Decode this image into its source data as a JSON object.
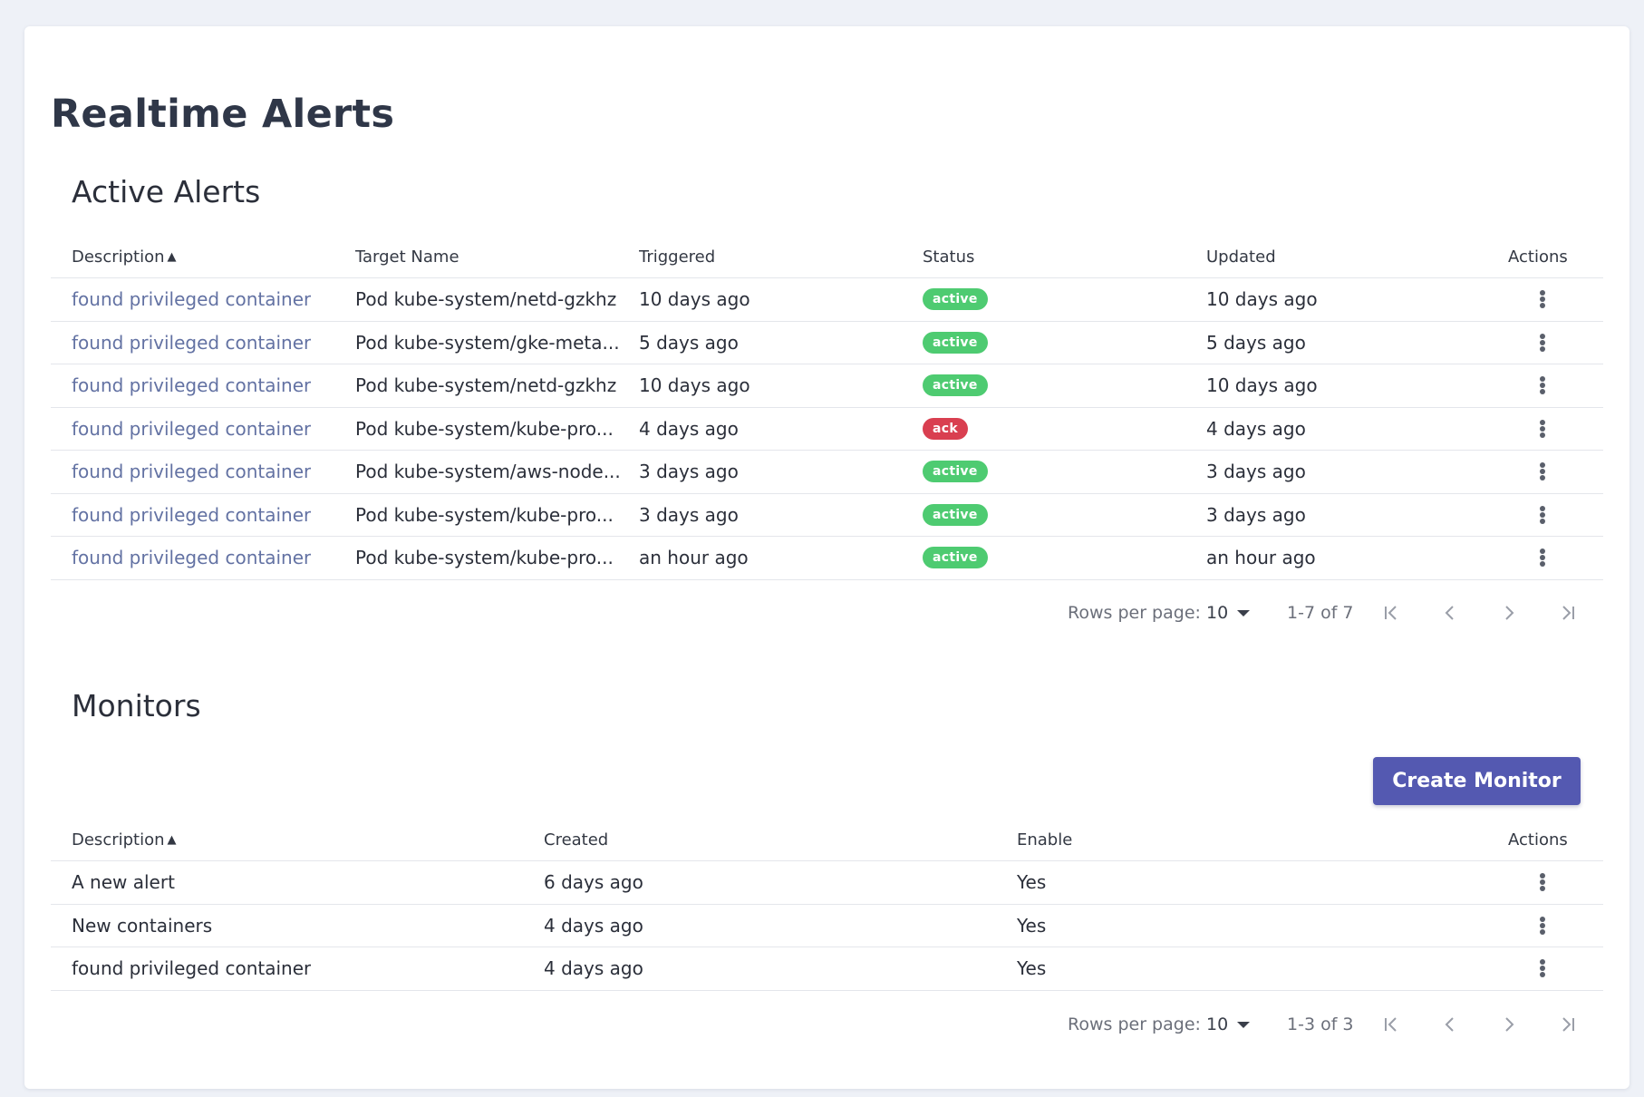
{
  "page": {
    "title": "Realtime Alerts"
  },
  "colors": {
    "accent": "#5459b1",
    "status_active": "#4ecb71",
    "status_ack": "#d93f50",
    "link": "#6372a3"
  },
  "active_alerts": {
    "title": "Active Alerts",
    "columns": {
      "description": "Description",
      "target_name": "Target Name",
      "triggered": "Triggered",
      "status": "Status",
      "updated": "Updated",
      "actions": "Actions"
    },
    "sort_indicator": "▲",
    "rows": [
      {
        "description": "found privileged container",
        "target": "Pod kube-system/netd-gzkhz",
        "triggered": "10 days ago",
        "status": "active",
        "updated": "10 days ago"
      },
      {
        "description": "found privileged container",
        "target": "Pod kube-system/gke-meta...",
        "triggered": "5 days ago",
        "status": "active",
        "updated": "5 days ago"
      },
      {
        "description": "found privileged container",
        "target": "Pod kube-system/netd-gzkhz",
        "triggered": "10 days ago",
        "status": "active",
        "updated": "10 days ago"
      },
      {
        "description": "found privileged container",
        "target": "Pod kube-system/kube-pro...",
        "triggered": "4 days ago",
        "status": "ack",
        "updated": "4 days ago"
      },
      {
        "description": "found privileged container",
        "target": "Pod kube-system/aws-node...",
        "triggered": "3 days ago",
        "status": "active",
        "updated": "3 days ago"
      },
      {
        "description": "found privileged container",
        "target": "Pod kube-system/kube-pro...",
        "triggered": "3 days ago",
        "status": "active",
        "updated": "3 days ago"
      },
      {
        "description": "found privileged container",
        "target": "Pod kube-system/kube-pro...",
        "triggered": "an hour ago",
        "status": "active",
        "updated": "an hour ago"
      }
    ],
    "pagination": {
      "rows_per_page_label": "Rows per page:",
      "rows_per_page_value": "10",
      "range": "1-7 of 7"
    }
  },
  "monitors": {
    "title": "Monitors",
    "create_button": "Create Monitor",
    "columns": {
      "description": "Description",
      "created": "Created",
      "enable": "Enable",
      "actions": "Actions"
    },
    "sort_indicator": "▲",
    "rows": [
      {
        "description": "A new alert",
        "created": "6 days ago",
        "enable": "Yes"
      },
      {
        "description": "New containers",
        "created": "4 days ago",
        "enable": "Yes"
      },
      {
        "description": "found privileged container",
        "created": "4 days ago",
        "enable": "Yes"
      }
    ],
    "pagination": {
      "rows_per_page_label": "Rows per page:",
      "rows_per_page_value": "10",
      "range": "1-3 of 3"
    }
  }
}
